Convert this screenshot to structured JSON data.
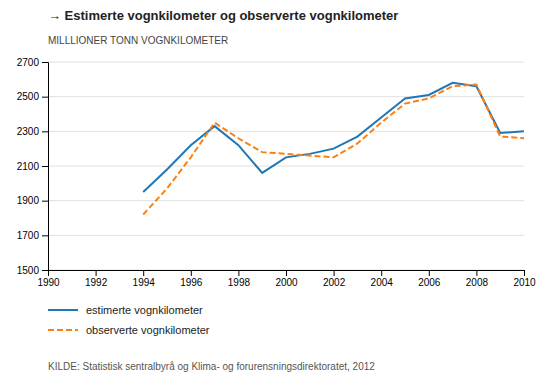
{
  "chart_data": {
    "type": "line",
    "title": "→ Estimerte vognkilometer og observerte vognkilometer",
    "ylabel": "MILLLIONER TONN VOGNKILOMETER",
    "source": "KILDE: Statistisk sentralbyrå og Klima- og forurensningsdirektoratet, 2012",
    "x": [
      1994,
      1995,
      1996,
      1997,
      1998,
      1999,
      2000,
      2001,
      2002,
      2003,
      2004,
      2005,
      2006,
      2007,
      2008,
      2009,
      2010
    ],
    "series": [
      {
        "name": "estimerte vognkilometer",
        "line_style": "solid",
        "values": [
          1950,
          2080,
          2220,
          2330,
          2220,
          2060,
          2150,
          2170,
          2200,
          2270,
          2380,
          2490,
          2510,
          2580,
          2560,
          2290,
          2300
        ]
      },
      {
        "name": "observerte vognkilometer",
        "line_style": "dashed",
        "values": [
          1820,
          1970,
          2150,
          2350,
          2260,
          2180,
          2170,
          2160,
          2150,
          2230,
          2350,
          2460,
          2490,
          2560,
          2570,
          2270,
          2260
        ]
      }
    ],
    "xlim": [
      1990,
      2010
    ],
    "xticks": [
      1990,
      1992,
      1994,
      1996,
      1998,
      2000,
      2002,
      2004,
      2006,
      2008,
      2010
    ],
    "ylim": [
      1500,
      2700
    ],
    "yticks": [
      1500,
      1700,
      1900,
      2100,
      2300,
      2500,
      2700
    ],
    "grid": true,
    "legend": "bottom"
  }
}
